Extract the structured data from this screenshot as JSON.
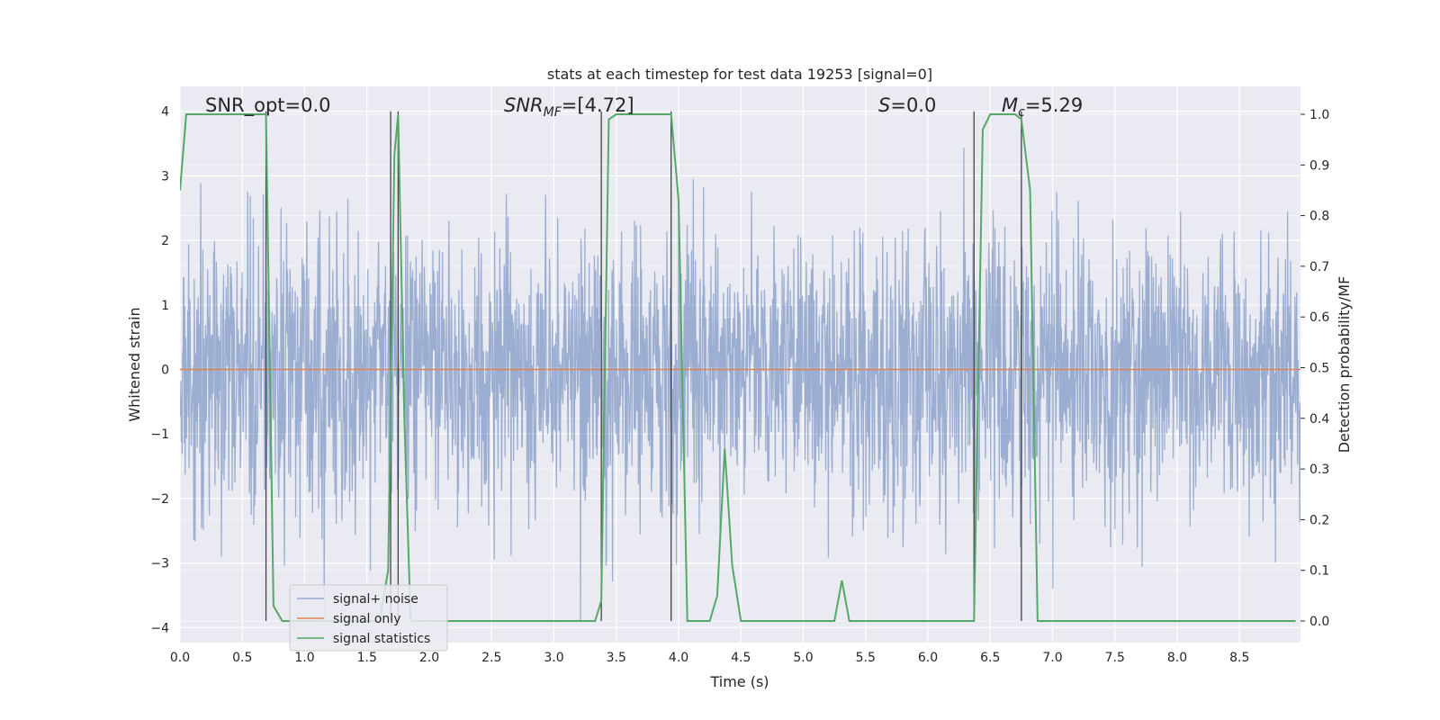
{
  "chart_data": {
    "type": "line",
    "title": "stats at each timestep for test data 19253 [signal=0]",
    "xlabel": "Time (s)",
    "ylabel": "Whitened strain",
    "ylabel_right": "Detection probability/MF",
    "xlim": [
      0,
      9.0
    ],
    "ylim": [
      -4.4,
      4.4
    ],
    "ylim_right": [
      -0.05,
      1.05
    ],
    "x_ticks": [
      "0.0",
      "0.5",
      "1.0",
      "1.5",
      "2.0",
      "2.5",
      "3.0",
      "3.5",
      "4.0",
      "4.5",
      "5.0",
      "5.5",
      "6.0",
      "6.5",
      "7.0",
      "7.5",
      "8.0",
      "8.5"
    ],
    "y_ticks": [
      "4",
      "3",
      "2",
      "1",
      "0",
      "−1",
      "−2",
      "−3",
      "−4"
    ],
    "y_ticks_right": [
      "1.0",
      "0.9",
      "0.8",
      "0.7",
      "0.6",
      "0.5",
      "0.4",
      "0.3",
      "0.2",
      "0.1",
      "0.0"
    ],
    "grid": true,
    "legend_position": "lower-left",
    "annotations": {
      "snr_opt": "SNR_opt=0.0",
      "snr_mf": "=[4.72]",
      "s_val": "=0.0",
      "mc_val": "=5.29"
    },
    "vlines_x": [
      0.69,
      1.69,
      1.75,
      3.38,
      3.94,
      6.37,
      6.75
    ],
    "series": [
      {
        "name": "signal+ noise",
        "color": "#4c72b0",
        "axis": "left",
        "note": "whitened noise trace, approx. Gaussian with peaks reaching about +/-3.9"
      },
      {
        "name": "signal only",
        "color": "#dd8452",
        "axis": "left",
        "x": [
          0,
          9.0
        ],
        "y": [
          0,
          0
        ]
      },
      {
        "name": "signal statistics",
        "color": "#55a868",
        "axis": "right",
        "x": [
          0,
          0.05,
          0.1,
          0.2,
          0.3,
          0.4,
          0.5,
          0.6,
          0.69,
          0.75,
          0.82,
          0.9,
          1.0,
          1.3,
          1.6,
          1.67,
          1.72,
          1.75,
          1.8,
          1.85,
          2.0,
          2.5,
          3.0,
          3.33,
          3.38,
          3.44,
          3.5,
          3.6,
          3.8,
          3.94,
          4.0,
          4.07,
          4.15,
          4.25,
          4.31,
          4.37,
          4.43,
          4.5,
          4.6,
          4.8,
          5.0,
          5.25,
          5.31,
          5.37,
          5.45,
          5.6,
          6.0,
          6.37,
          6.44,
          6.5,
          6.7,
          6.75,
          6.82,
          6.88,
          7.0,
          8.0,
          8.95
        ],
        "y": [
          0.85,
          1.0,
          1.0,
          1.0,
          1.0,
          1.0,
          1.0,
          1.0,
          1.0,
          0.03,
          0.0,
          0.0,
          0.0,
          0.0,
          0.0,
          0.1,
          0.92,
          1.0,
          0.4,
          0.0,
          0.0,
          0.0,
          0.0,
          0.0,
          0.04,
          0.99,
          1.0,
          1.0,
          1.0,
          1.0,
          0.83,
          0.0,
          0.0,
          0.0,
          0.05,
          0.34,
          0.11,
          0.0,
          0.0,
          0.0,
          0.0,
          0.0,
          0.08,
          0.0,
          0.0,
          0.0,
          0.0,
          0.0,
          0.97,
          1.0,
          1.0,
          0.99,
          0.85,
          0.0,
          0.0,
          0.0,
          0.0
        ]
      }
    ]
  }
}
